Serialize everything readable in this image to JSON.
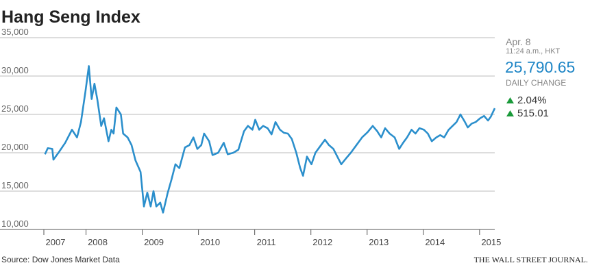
{
  "chart_data": {
    "type": "line",
    "title": "Hang Seng Index",
    "source": "Source: Dow Jones Market Data",
    "publisher": "THE WALL STREET JOURNAL.",
    "x": [
      2007.27,
      2007.32,
      2007.4,
      2007.42,
      2007.51,
      2007.63,
      2007.75,
      2007.84,
      2007.91,
      2007.99,
      2008.05,
      2008.1,
      2008.15,
      2008.2,
      2008.27,
      2008.32,
      2008.4,
      2008.45,
      2008.49,
      2008.54,
      2008.62,
      2008.66,
      2008.74,
      2008.81,
      2008.88,
      2008.97,
      2009.03,
      2009.09,
      2009.15,
      2009.2,
      2009.25,
      2009.32,
      2009.37,
      2009.45,
      2009.52,
      2009.59,
      2009.66,
      2009.76,
      2009.84,
      2009.91,
      2009.98,
      2010.05,
      2010.1,
      2010.19,
      2010.25,
      2010.35,
      2010.45,
      2010.52,
      2010.62,
      2010.71,
      2010.81,
      2010.88,
      2010.96,
      2011.01,
      2011.08,
      2011.15,
      2011.23,
      2011.3,
      2011.37,
      2011.45,
      2011.52,
      2011.59,
      2011.66,
      2011.74,
      2011.81,
      2011.86,
      2011.93,
      2012.01,
      2012.08,
      2012.18,
      2012.25,
      2012.32,
      2012.4,
      2012.47,
      2012.54,
      2012.64,
      2012.71,
      2012.81,
      2012.91,
      2013.01,
      2013.1,
      2013.18,
      2013.25,
      2013.32,
      2013.4,
      2013.49,
      2013.57,
      2013.64,
      2013.71,
      2013.79,
      2013.86,
      2013.93,
      2014.01,
      2014.08,
      2014.15,
      2014.23,
      2014.3,
      2014.37,
      2014.45,
      2014.52,
      2014.59,
      2014.66,
      2014.74,
      2014.79,
      2014.86,
      2014.93,
      2015.01,
      2015.08,
      2015.15,
      2015.2,
      2015.27
    ],
    "series": [
      {
        "name": "Hang Seng Index",
        "color": "#2b8fcc",
        "values": [
          19800,
          20600,
          20500,
          19100,
          20000,
          21300,
          23000,
          22000,
          24000,
          28000,
          31300,
          27000,
          29000,
          27000,
          23500,
          24500,
          21500,
          23000,
          22500,
          25900,
          25000,
          22500,
          22000,
          21000,
          19000,
          17500,
          13000,
          14800,
          13000,
          15000,
          13000,
          13500,
          12200,
          14700,
          16500,
          18500,
          18000,
          20700,
          21000,
          22000,
          20500,
          21000,
          22500,
          21500,
          19700,
          20000,
          21300,
          19800,
          20000,
          20400,
          22800,
          23500,
          23000,
          24300,
          23000,
          23500,
          23200,
          22400,
          24000,
          23000,
          22600,
          22500,
          21800,
          20000,
          18000,
          17000,
          19500,
          18500,
          20000,
          21000,
          21700,
          21000,
          20500,
          19500,
          18500,
          19400,
          20000,
          21000,
          22000,
          22700,
          23500,
          22800,
          22000,
          23200,
          22500,
          22000,
          20500,
          21300,
          22000,
          23000,
          22500,
          23200,
          23000,
          22500,
          21500,
          22000,
          22300,
          22000,
          23000,
          23500,
          24000,
          25000,
          24000,
          23300,
          23800,
          24000,
          24500,
          24800,
          24200,
          24700,
          25800
        ]
      }
    ],
    "xlim": [
      2007.25,
      2015.27
    ],
    "xticks": [
      2007,
      2008,
      2009,
      2010,
      2011,
      2012,
      2013,
      2014,
      2015
    ],
    "ylim": [
      10000,
      35000
    ],
    "yticks": [
      {
        "value": 10000,
        "label": "10,000"
      },
      {
        "value": 15000,
        "label": "15,000"
      },
      {
        "value": 20000,
        "label": "20,000"
      },
      {
        "value": 25000,
        "label": "25,000"
      },
      {
        "value": 30000,
        "label": "30,000"
      },
      {
        "value": 35000,
        "label": "35,000"
      }
    ],
    "grid": true
  },
  "quote": {
    "date": "Apr. 8",
    "time": "11:24 a.m., HKT",
    "price": "25,790.65",
    "change_label": "DAILY CHANGE",
    "change_pct": "2.04%",
    "change_pts": "515.01"
  }
}
